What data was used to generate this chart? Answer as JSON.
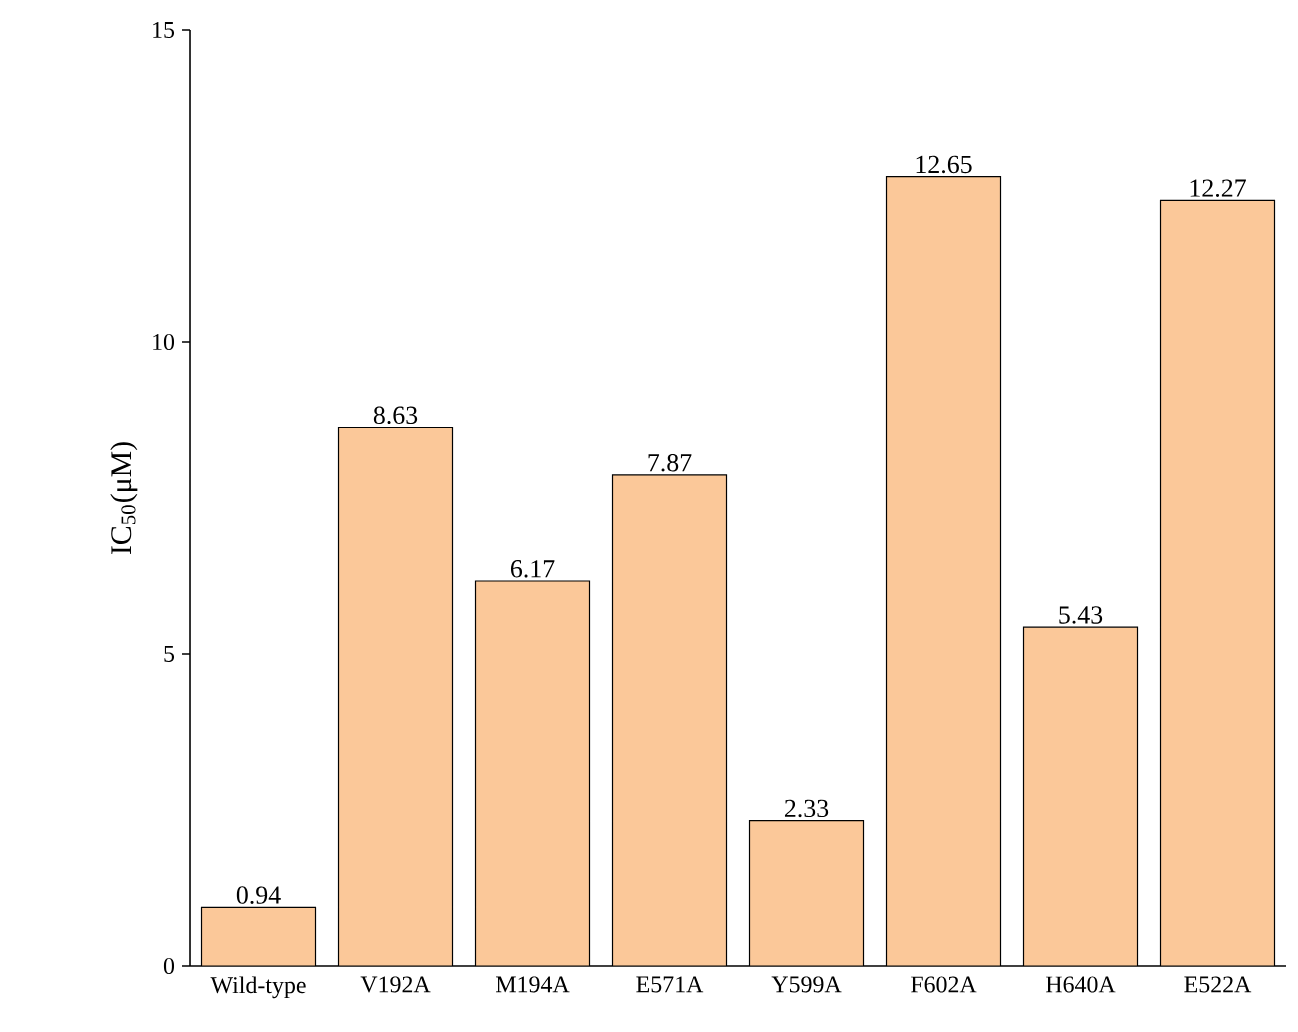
{
  "chart_data": {
    "type": "bar",
    "ylabel": "IC$_{50}$(μM)",
    "categories": [
      "Wild-type",
      "V192A",
      "M194A",
      "E571A",
      "Y599A",
      "F602A",
      "H640A",
      "E522A"
    ],
    "values": [
      0.94,
      8.63,
      6.17,
      7.87,
      2.33,
      12.65,
      5.43,
      12.27
    ],
    "value_labels": [
      "0.94",
      "8.63",
      "6.17",
      "7.87",
      "2.33",
      "12.65",
      "5.43",
      "12.27"
    ],
    "color": "#fbc899",
    "ylim": [
      0,
      15
    ],
    "yticks": [
      0,
      5,
      10,
      15
    ],
    "grid": false
  }
}
